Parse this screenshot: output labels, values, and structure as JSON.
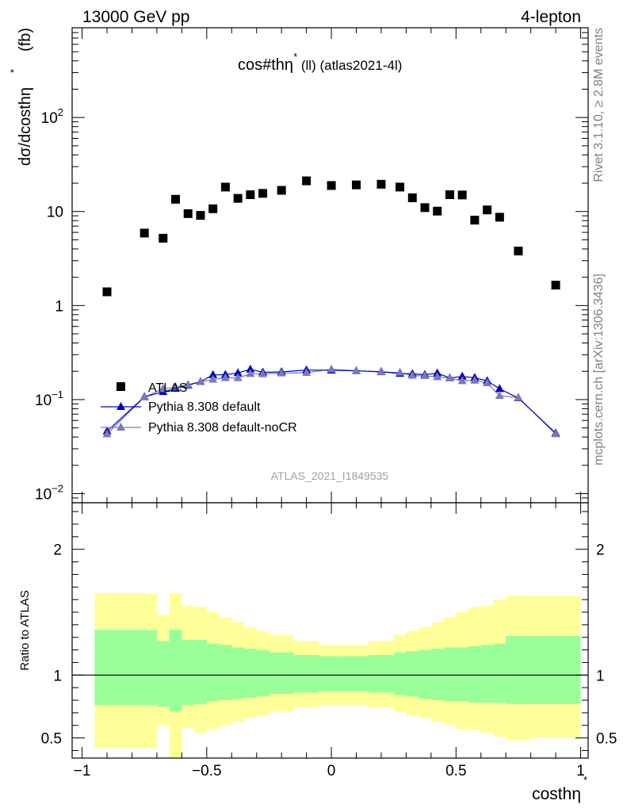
{
  "header": {
    "left": "13000 GeV pp",
    "right": "4-lepton"
  },
  "side_text": {
    "rivet": "Rivet 3.1.10, ≥ 2.8M events",
    "mcplots": "mcplots.cern.ch [arXiv:1306.3436]"
  },
  "chart_data": {
    "type": "scatter",
    "title": "cos#thη* (ll) (atlas2021-4l)",
    "title_main": "cos#thη",
    "title_sup": "*",
    "title_rest": " (ll) (atlas2021-4l)",
    "watermark": "ATLAS_2021_I1849535",
    "ylabel": "dσ/dcosthη* (fb)",
    "ylabel_main": "dσ/dcosthη",
    "ylabel_sup": "*",
    "ylabel_rest": " (fb)",
    "xlabel": "costhη*",
    "xlabel_main": "costhη",
    "xlabel_sup": "*",
    "xlim": [
      -1.04,
      1.03
    ],
    "ylim": [
      0.008,
      900
    ],
    "yscale": "log",
    "ratio_ylabel": "Ratio to ATLAS",
    "ratio_ylim": [
      0.34,
      2.37
    ],
    "ratio_yticks": [
      "0.5",
      "1",
      "2"
    ],
    "xticks": [
      "−1",
      "−0.5",
      "0",
      "0.5",
      "1"
    ],
    "yticks": [
      {
        "base": "10",
        "exp": "−2"
      },
      {
        "base": "10",
        "exp": "−1"
      },
      {
        "base": "1",
        "exp": ""
      },
      {
        "base": "10",
        "exp": ""
      },
      {
        "base": "10",
        "exp": "2"
      }
    ],
    "legend_position": "left",
    "colors": {
      "data": "#000000",
      "pythia_default": "#0000cc",
      "pythia_nocr": "#7a7ab8",
      "band_inner": "#99ff99",
      "band_outer": "#ffff99"
    },
    "series": [
      {
        "name": "ATLAS",
        "x": [
          -0.9,
          -0.75,
          -0.675,
          -0.625,
          -0.575,
          -0.525,
          -0.475,
          -0.425,
          -0.375,
          -0.325,
          -0.275,
          -0.2,
          -0.1,
          0.0,
          0.1,
          0.2,
          0.275,
          0.325,
          0.375,
          0.425,
          0.475,
          0.525,
          0.575,
          0.625,
          0.675,
          0.75,
          0.9
        ],
        "y": [
          1.4,
          5.9,
          5.2,
          13.5,
          9.5,
          9.1,
          10.7,
          18.2,
          13.8,
          15.1,
          15.6,
          16.8,
          21.2,
          18.9,
          19.2,
          19.5,
          18.2,
          14.0,
          11.0,
          10.1,
          15.1,
          15.0,
          8.1,
          10.4,
          8.7,
          3.8,
          1.65
        ]
      },
      {
        "name": "Pythia 8.308 default",
        "x": [
          -0.9,
          -0.75,
          -0.675,
          -0.625,
          -0.575,
          -0.525,
          -0.475,
          -0.425,
          -0.375,
          -0.325,
          -0.275,
          -0.2,
          -0.1,
          0.0,
          0.1,
          0.2,
          0.275,
          0.325,
          0.375,
          0.425,
          0.475,
          0.525,
          0.575,
          0.625,
          0.675,
          0.75,
          0.9
        ],
        "y": [
          0.046,
          0.107,
          0.121,
          0.131,
          0.142,
          0.155,
          0.183,
          0.184,
          0.192,
          0.21,
          0.195,
          0.197,
          0.206,
          0.205,
          0.202,
          0.198,
          0.189,
          0.188,
          0.184,
          0.191,
          0.17,
          0.176,
          0.171,
          0.158,
          0.13,
          0.104,
          0.044
        ]
      },
      {
        "name": "Pythia 8.308 default-noCR",
        "x": [
          -0.9,
          -0.75,
          -0.675,
          -0.625,
          -0.575,
          -0.525,
          -0.475,
          -0.425,
          -0.375,
          -0.325,
          -0.275,
          -0.2,
          -0.1,
          0.0,
          0.1,
          0.2,
          0.275,
          0.325,
          0.375,
          0.425,
          0.475,
          0.525,
          0.575,
          0.625,
          0.675,
          0.75,
          0.9
        ],
        "y": [
          0.043,
          0.106,
          0.13,
          0.136,
          0.144,
          0.154,
          0.164,
          0.17,
          0.17,
          0.188,
          0.187,
          0.191,
          0.193,
          0.21,
          0.203,
          0.196,
          0.194,
          0.18,
          0.179,
          0.174,
          0.169,
          0.158,
          0.16,
          0.15,
          0.11,
          0.105,
          0.043
        ]
      }
    ],
    "ratio_bands": {
      "edges": [
        -0.95,
        -0.85,
        -0.7,
        -0.65,
        -0.6,
        -0.55,
        -0.5,
        -0.45,
        -0.4,
        -0.35,
        -0.3,
        -0.25,
        -0.15,
        -0.05,
        0.05,
        0.15,
        0.25,
        0.3,
        0.35,
        0.4,
        0.45,
        0.5,
        0.55,
        0.6,
        0.65,
        0.7,
        0.8,
        1.0
      ],
      "inner_hi": [
        1.36,
        1.36,
        1.27,
        1.36,
        1.28,
        1.28,
        1.25,
        1.24,
        1.22,
        1.21,
        1.2,
        1.18,
        1.16,
        1.15,
        1.15,
        1.16,
        1.18,
        1.19,
        1.2,
        1.21,
        1.22,
        1.22,
        1.23,
        1.24,
        1.25,
        1.31,
        1.31
      ],
      "inner_lo": [
        0.76,
        0.76,
        0.75,
        0.71,
        0.76,
        0.77,
        0.79,
        0.8,
        0.81,
        0.82,
        0.83,
        0.85,
        0.86,
        0.87,
        0.87,
        0.86,
        0.84,
        0.83,
        0.81,
        0.8,
        0.79,
        0.79,
        0.78,
        0.78,
        0.78,
        0.77,
        0.77
      ],
      "outer_hi": [
        1.65,
        1.65,
        1.48,
        1.65,
        1.55,
        1.54,
        1.5,
        1.46,
        1.42,
        1.38,
        1.35,
        1.32,
        1.27,
        1.24,
        1.24,
        1.27,
        1.32,
        1.35,
        1.38,
        1.42,
        1.46,
        1.5,
        1.54,
        1.55,
        1.6,
        1.63,
        1.63
      ],
      "outer_lo": [
        0.42,
        0.42,
        0.6,
        0.34,
        0.58,
        0.54,
        0.57,
        0.6,
        0.63,
        0.66,
        0.68,
        0.71,
        0.74,
        0.76,
        0.76,
        0.74,
        0.71,
        0.68,
        0.66,
        0.63,
        0.6,
        0.57,
        0.56,
        0.54,
        0.51,
        0.48,
        0.5
      ]
    },
    "ratio_series": [
      {
        "name": "ATLAS",
        "y": [
          1.0,
          1.0
        ]
      }
    ]
  }
}
